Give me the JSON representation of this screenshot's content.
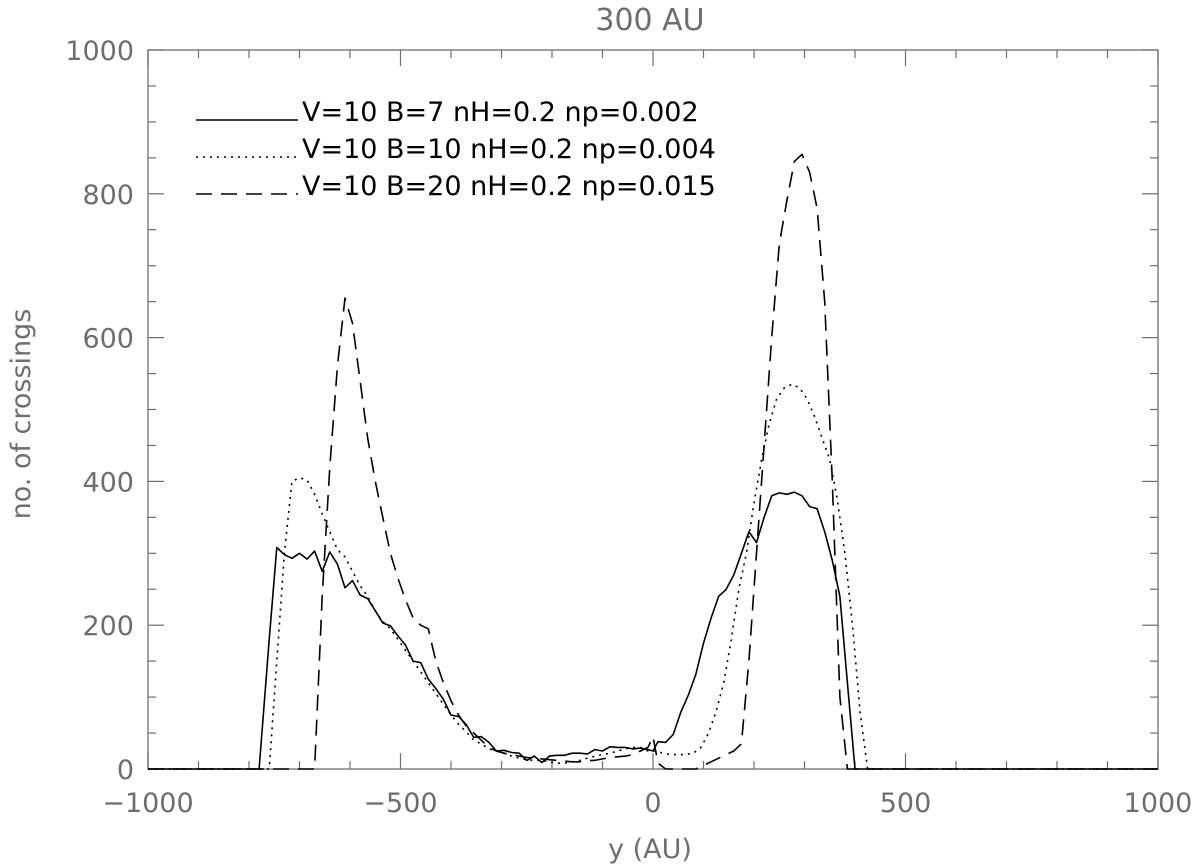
{
  "chart_data": {
    "type": "line",
    "title": "300 AU",
    "xlabel": "y (AU)",
    "ylabel": "no. of crossings",
    "xlim": [
      -1000,
      1000
    ],
    "ylim": [
      0,
      1000
    ],
    "x_ticks": [
      -1000,
      -500,
      0,
      500,
      1000
    ],
    "x_tick_labels": [
      "−1000",
      "−500",
      "0",
      "500",
      "1000"
    ],
    "y_ticks": [
      0,
      200,
      400,
      600,
      800,
      1000
    ],
    "y_tick_labels": [
      "0",
      "200",
      "400",
      "600",
      "800",
      "1000"
    ],
    "grid": false,
    "legend_position": "top-left",
    "series": [
      {
        "name": "V=10 B=7 nH=0.2 np=0.002",
        "line_style": "solid",
        "color": "#000000",
        "x": [
          -1000,
          -780,
          -760,
          -745,
          -730,
          -715,
          -700,
          -685,
          -670,
          -655,
          -640,
          -625,
          -610,
          -595,
          -580,
          -565,
          -550,
          -535,
          -520,
          -505,
          -490,
          -475,
          -460,
          -445,
          -430,
          -415,
          -400,
          -385,
          -370,
          -355,
          -340,
          -325,
          -310,
          -295,
          -280,
          -265,
          -250,
          -235,
          -220,
          -205,
          -190,
          -175,
          -160,
          -145,
          -130,
          -115,
          -100,
          -85,
          -70,
          -55,
          -40,
          -25,
          -10,
          0,
          10,
          25,
          40,
          55,
          70,
          85,
          100,
          115,
          130,
          145,
          160,
          175,
          190,
          205,
          220,
          235,
          250,
          265,
          280,
          295,
          310,
          325,
          340,
          355,
          370,
          385,
          400,
          415,
          430,
          445,
          1000
        ],
        "y": [
          0,
          0,
          180,
          308,
          298,
          293,
          300,
          292,
          303,
          275,
          302,
          285,
          252,
          262,
          242,
          237,
          220,
          203,
          199,
          185,
          172,
          150,
          148,
          125,
          112,
          97,
          75,
          73,
          62,
          44,
          45,
          37,
          25,
          26,
          23,
          22,
          12,
          18,
          9,
          18,
          19,
          19,
          22,
          22,
          21,
          27,
          25,
          31,
          30,
          30,
          28,
          29,
          27,
          25,
          38,
          37,
          48,
          79,
          103,
          132,
          175,
          210,
          240,
          250,
          270,
          300,
          330,
          315,
          350,
          380,
          384,
          382,
          385,
          380,
          365,
          362,
          330,
          290,
          240,
          120,
          0,
          0,
          0,
          0,
          0
        ]
      },
      {
        "name": "V=10 B=10 nH=0.2 np=0.004",
        "line_style": "dotted",
        "color": "#000000",
        "x": [
          -1000,
          -760,
          -745,
          -730,
          -715,
          -700,
          -685,
          -670,
          -655,
          -640,
          -625,
          -610,
          -595,
          -580,
          -565,
          -550,
          -535,
          -520,
          -505,
          -490,
          -475,
          -460,
          -445,
          -430,
          -415,
          -400,
          -385,
          -370,
          -355,
          -340,
          -325,
          -310,
          -295,
          -280,
          -265,
          -250,
          -235,
          -220,
          -205,
          -190,
          -175,
          -160,
          -145,
          -130,
          -115,
          -100,
          -85,
          -70,
          -55,
          -40,
          -25,
          -10,
          5,
          20,
          35,
          50,
          65,
          80,
          95,
          110,
          125,
          140,
          155,
          170,
          185,
          200,
          215,
          230,
          245,
          260,
          275,
          290,
          305,
          320,
          335,
          350,
          365,
          380,
          395,
          410,
          425,
          1000
        ],
        "y": [
          0,
          0,
          150,
          300,
          400,
          405,
          402,
          382,
          355,
          330,
          305,
          295,
          275,
          255,
          240,
          220,
          205,
          195,
          180,
          165,
          150,
          135,
          120,
          105,
          90,
          75,
          62,
          52,
          40,
          35,
          28,
          25,
          22,
          18,
          15,
          13,
          12,
          12,
          10,
          8,
          8,
          10,
          12,
          15,
          18,
          20,
          22,
          25,
          28,
          30,
          30,
          25,
          25,
          22,
          20,
          20,
          20,
          22,
          30,
          50,
          80,
          120,
          180,
          250,
          300,
          370,
          430,
          480,
          515,
          530,
          535,
          530,
          515,
          490,
          460,
          430,
          375,
          300,
          200,
          80,
          0,
          0
        ]
      },
      {
        "name": "V=10 B=20 nH=0.2 np=0.015",
        "line_style": "dashed",
        "color": "#000000",
        "x": [
          -1000,
          -670,
          -655,
          -640,
          -625,
          -610,
          -595,
          -580,
          -565,
          -550,
          -535,
          -520,
          -505,
          -490,
          -475,
          -460,
          -445,
          -430,
          -415,
          -400,
          -385,
          -370,
          -355,
          -340,
          -325,
          -310,
          -295,
          -280,
          -265,
          -250,
          -235,
          -220,
          -205,
          -190,
          -175,
          -160,
          -145,
          -130,
          -115,
          -100,
          -85,
          -70,
          -55,
          -40,
          -25,
          -10,
          0,
          10,
          25,
          40,
          55,
          70,
          85,
          100,
          115,
          130,
          145,
          160,
          175,
          190,
          205,
          220,
          235,
          250,
          265,
          280,
          295,
          310,
          325,
          340,
          355,
          370,
          385,
          1000
        ],
        "y": [
          0,
          0,
          240,
          420,
          560,
          655,
          620,
          540,
          460,
          400,
          350,
          300,
          265,
          235,
          210,
          200,
          195,
          150,
          120,
          95,
          75,
          60,
          50,
          40,
          30,
          25,
          22,
          20,
          18,
          16,
          15,
          14,
          13,
          12,
          11,
          10,
          10,
          12,
          12,
          14,
          16,
          17,
          18,
          20,
          25,
          30,
          45,
          8,
          0,
          0,
          0,
          0,
          0,
          5,
          10,
          15,
          20,
          25,
          35,
          150,
          300,
          450,
          600,
          730,
          790,
          845,
          855,
          830,
          780,
          650,
          400,
          100,
          0,
          0
        ]
      }
    ]
  }
}
